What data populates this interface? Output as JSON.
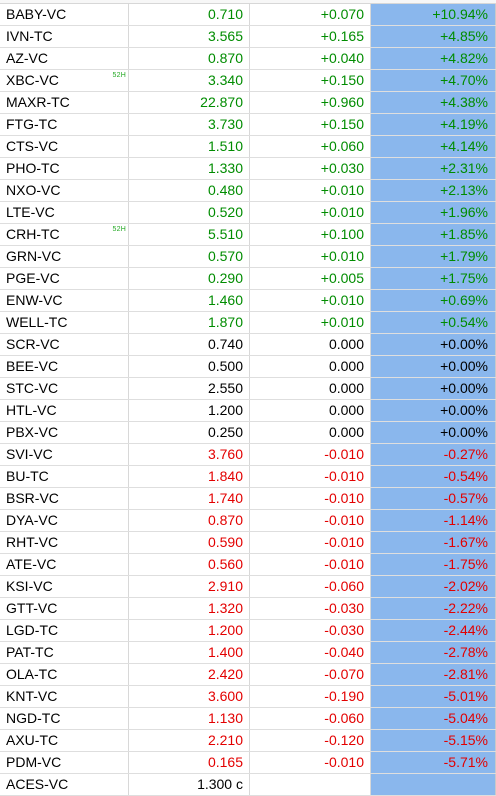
{
  "watchlist": {
    "rows": [
      {
        "symbol": "BABY-VC",
        "last": "0.710",
        "change": "+0.070",
        "pct": "+10.94%",
        "dir": "up",
        "badge": ""
      },
      {
        "symbol": "IVN-TC",
        "last": "3.565",
        "change": "+0.165",
        "pct": "+4.85%",
        "dir": "up",
        "badge": ""
      },
      {
        "symbol": "AZ-VC",
        "last": "0.870",
        "change": "+0.040",
        "pct": "+4.82%",
        "dir": "up",
        "badge": ""
      },
      {
        "symbol": "XBC-VC",
        "last": "3.340",
        "change": "+0.150",
        "pct": "+4.70%",
        "dir": "up",
        "badge": "52H"
      },
      {
        "symbol": "MAXR-TC",
        "last": "22.870",
        "change": "+0.960",
        "pct": "+4.38%",
        "dir": "up",
        "badge": ""
      },
      {
        "symbol": "FTG-TC",
        "last": "3.730",
        "change": "+0.150",
        "pct": "+4.19%",
        "dir": "up",
        "badge": ""
      },
      {
        "symbol": "CTS-VC",
        "last": "1.510",
        "change": "+0.060",
        "pct": "+4.14%",
        "dir": "up",
        "badge": ""
      },
      {
        "symbol": "PHO-TC",
        "last": "1.330",
        "change": "+0.030",
        "pct": "+2.31%",
        "dir": "up",
        "badge": ""
      },
      {
        "symbol": "NXO-VC",
        "last": "0.480",
        "change": "+0.010",
        "pct": "+2.13%",
        "dir": "up",
        "badge": ""
      },
      {
        "symbol": "LTE-VC",
        "last": "0.520",
        "change": "+0.010",
        "pct": "+1.96%",
        "dir": "up",
        "badge": ""
      },
      {
        "symbol": "CRH-TC",
        "last": "5.510",
        "change": "+0.100",
        "pct": "+1.85%",
        "dir": "up",
        "badge": "52H"
      },
      {
        "symbol": "GRN-VC",
        "last": "0.570",
        "change": "+0.010",
        "pct": "+1.79%",
        "dir": "up",
        "badge": ""
      },
      {
        "symbol": "PGE-VC",
        "last": "0.290",
        "change": "+0.005",
        "pct": "+1.75%",
        "dir": "up",
        "badge": ""
      },
      {
        "symbol": "ENW-VC",
        "last": "1.460",
        "change": "+0.010",
        "pct": "+0.69%",
        "dir": "up",
        "badge": ""
      },
      {
        "symbol": "WELL-TC",
        "last": "1.870",
        "change": "+0.010",
        "pct": "+0.54%",
        "dir": "up",
        "badge": ""
      },
      {
        "symbol": "SCR-VC",
        "last": "0.740",
        "change": "0.000",
        "pct": "+0.00%",
        "dir": "flat",
        "badge": ""
      },
      {
        "symbol": "BEE-VC",
        "last": "0.500",
        "change": "0.000",
        "pct": "+0.00%",
        "dir": "flat",
        "badge": ""
      },
      {
        "symbol": "STC-VC",
        "last": "2.550",
        "change": "0.000",
        "pct": "+0.00%",
        "dir": "flat",
        "badge": ""
      },
      {
        "symbol": "HTL-VC",
        "last": "1.200",
        "change": "0.000",
        "pct": "+0.00%",
        "dir": "flat",
        "badge": ""
      },
      {
        "symbol": "PBX-VC",
        "last": "0.250",
        "change": "0.000",
        "pct": "+0.00%",
        "dir": "flat",
        "badge": ""
      },
      {
        "symbol": "SVI-VC",
        "last": "3.760",
        "change": "-0.010",
        "pct": "-0.27%",
        "dir": "down",
        "badge": ""
      },
      {
        "symbol": "BU-TC",
        "last": "1.840",
        "change": "-0.010",
        "pct": "-0.54%",
        "dir": "down",
        "badge": ""
      },
      {
        "symbol": "BSR-VC",
        "last": "1.740",
        "change": "-0.010",
        "pct": "-0.57%",
        "dir": "down",
        "badge": ""
      },
      {
        "symbol": "DYA-VC",
        "last": "0.870",
        "change": "-0.010",
        "pct": "-1.14%",
        "dir": "down",
        "badge": ""
      },
      {
        "symbol": "RHT-VC",
        "last": "0.590",
        "change": "-0.010",
        "pct": "-1.67%",
        "dir": "down",
        "badge": ""
      },
      {
        "symbol": "ATE-VC",
        "last": "0.560",
        "change": "-0.010",
        "pct": "-1.75%",
        "dir": "down",
        "badge": ""
      },
      {
        "symbol": "KSI-VC",
        "last": "2.910",
        "change": "-0.060",
        "pct": "-2.02%",
        "dir": "down",
        "badge": ""
      },
      {
        "symbol": "GTT-VC",
        "last": "1.320",
        "change": "-0.030",
        "pct": "-2.22%",
        "dir": "down",
        "badge": ""
      },
      {
        "symbol": "LGD-TC",
        "last": "1.200",
        "change": "-0.030",
        "pct": "-2.44%",
        "dir": "down",
        "badge": ""
      },
      {
        "symbol": "PAT-TC",
        "last": "1.400",
        "change": "-0.040",
        "pct": "-2.78%",
        "dir": "down",
        "badge": ""
      },
      {
        "symbol": "OLA-TC",
        "last": "2.420",
        "change": "-0.070",
        "pct": "-2.81%",
        "dir": "down",
        "badge": ""
      },
      {
        "symbol": "KNT-VC",
        "last": "3.600",
        "change": "-0.190",
        "pct": "-5.01%",
        "dir": "down",
        "badge": ""
      },
      {
        "symbol": "NGD-TC",
        "last": "1.130",
        "change": "-0.060",
        "pct": "-5.04%",
        "dir": "down",
        "badge": ""
      },
      {
        "symbol": "AXU-TC",
        "last": "2.210",
        "change": "-0.120",
        "pct": "-5.15%",
        "dir": "down",
        "badge": ""
      },
      {
        "symbol": "PDM-VC",
        "last": "0.165",
        "change": "-0.010",
        "pct": "-5.71%",
        "dir": "down",
        "badge": ""
      },
      {
        "symbol": "ACES-VC",
        "last": "1.300 c",
        "change": "",
        "pct": "",
        "dir": "flat",
        "badge": ""
      }
    ]
  },
  "colors": {
    "up": "#008c00",
    "down": "#e30000",
    "flat": "#000000",
    "pct_background": "#8ab7ed",
    "badge": "#23a823"
  }
}
